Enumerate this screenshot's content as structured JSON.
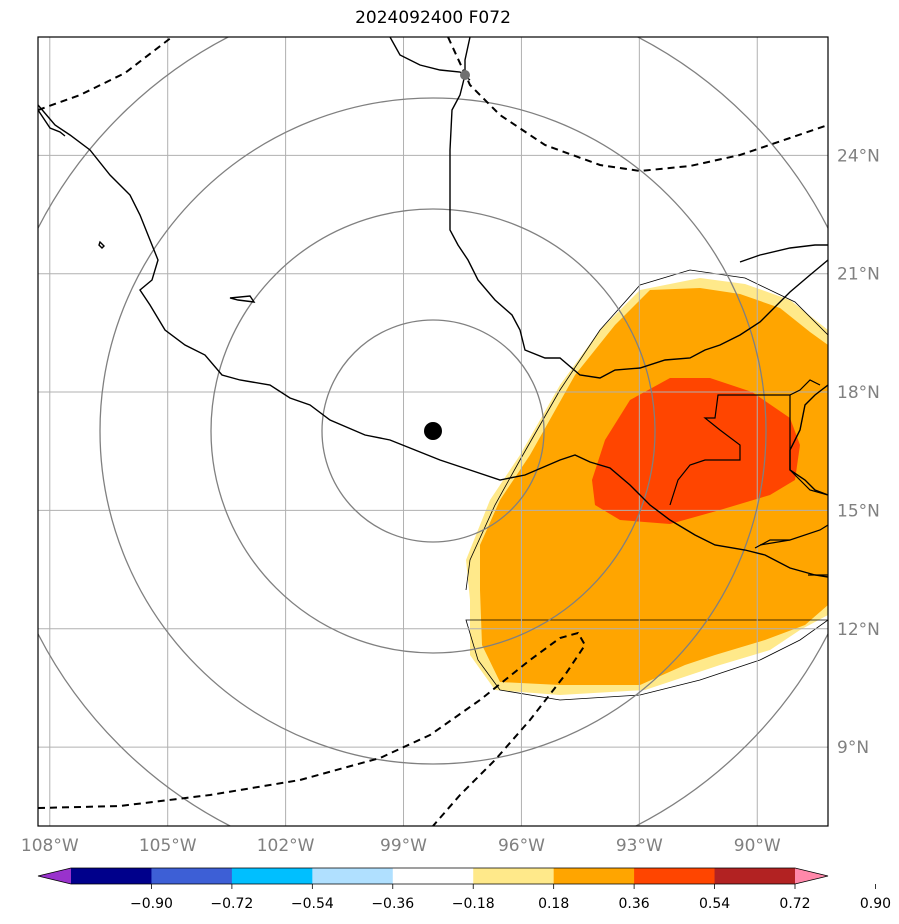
{
  "title": "2024092400 F072",
  "colors": {
    "frame": "#000000",
    "gridline": "#b0b0b0",
    "range_ring": "#808080",
    "coastline": "#000000",
    "track": "#000000",
    "center_marker": "#000000",
    "land_contour": "#000000",
    "fill_0_36_0_54": "#ffa500",
    "fill_0_18_0_36": "#ffe98a",
    "fill_0_54_0_72": "#ff4500"
  },
  "map": {
    "lon_range": [
      -108.3,
      -88.2
    ],
    "lat_range": [
      7.0,
      27.0
    ],
    "lon_ticks": [
      {
        "value": -108,
        "label": "108°W"
      },
      {
        "value": -105,
        "label": "105°W"
      },
      {
        "value": -102,
        "label": "102°W"
      },
      {
        "value": -99,
        "label": "99°W"
      },
      {
        "value": -96,
        "label": "96°W"
      },
      {
        "value": -93,
        "label": "93°W"
      },
      {
        "value": -90,
        "label": "90°W"
      }
    ],
    "lat_ticks": [
      {
        "value": 9,
        "label": "9°N"
      },
      {
        "value": 12,
        "label": "12°N"
      },
      {
        "value": 15,
        "label": "15°N"
      },
      {
        "value": 18,
        "label": "18°N"
      },
      {
        "value": 21,
        "label": "21°N"
      },
      {
        "value": 24,
        "label": "24°N"
      }
    ],
    "center": {
      "lon": -98.2,
      "lat": 16.8,
      "icon": "storm-center-dot-icon"
    },
    "secondary_marker": {
      "lon": -97.4,
      "lat": 25.9,
      "icon": "gray-dot-icon"
    }
  },
  "colorbar": {
    "ticks": [
      "−0.90",
      "−0.72",
      "−0.54",
      "−0.36",
      "−0.18",
      "0.18",
      "0.36",
      "0.54",
      "0.72",
      "0.90"
    ],
    "colors": [
      "#9932cc",
      "#00008b",
      "#3d5fd6",
      "#00bfff",
      "#b0e0ff",
      "#ffffff",
      "#ffe98a",
      "#ffa500",
      "#ff4500",
      "#b22222",
      "#ff88aa"
    ]
  }
}
